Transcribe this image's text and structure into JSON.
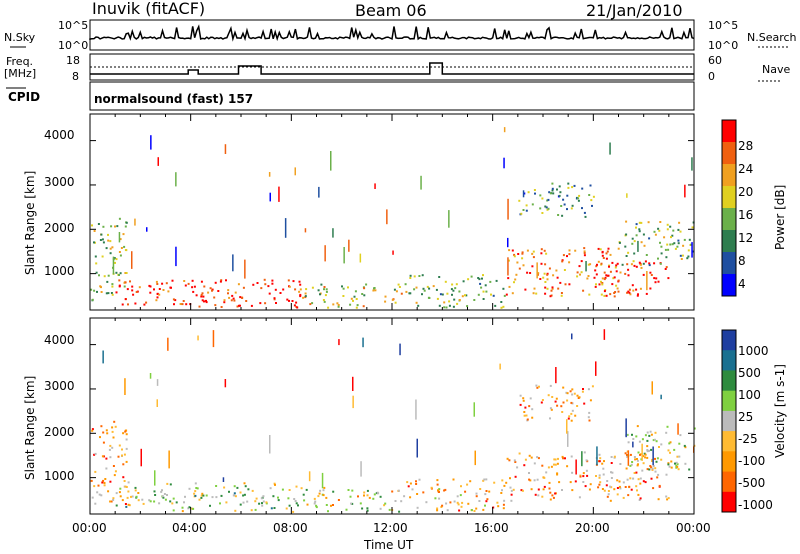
{
  "header": {
    "station": "Inuvik (fitACF)",
    "beam": "Beam 06",
    "date": "21/Jan/2010"
  },
  "noise_panel": {
    "left_label": "N.Sky",
    "left_ticks": [
      "10^5",
      "10^0"
    ],
    "right_ticks": [
      "10^5",
      "10^0"
    ],
    "right_label": "N.Search"
  },
  "freq_panel": {
    "left_label_1": "Freq.",
    "left_label_2": "[MHz]",
    "left_ticks": [
      "18",
      "8"
    ],
    "right_ticks": [
      "60",
      "0"
    ],
    "right_label": "Nave",
    "cpid_label": "CPID",
    "cpid_text": "normalsound (fast) 157"
  },
  "colors": {
    "power_scale": [
      "#0000ff",
      "#1f4fa0",
      "#2e7d4f",
      "#6bb04a",
      "#e0d020",
      "#f0a020",
      "#f06010",
      "#ff0000"
    ],
    "velocity_scale": [
      "#ff0000",
      "#ff6600",
      "#ff9900",
      "#ffbb33",
      "#bbbbbb",
      "#7fd040",
      "#2e8b3e",
      "#1a7090",
      "#1f3fa0"
    ]
  },
  "chart_data": [
    {
      "type": "heatmap",
      "title": "",
      "xlabel": "",
      "ylabel": "Slant Range [km]",
      "x_range_hours": [
        0,
        24
      ],
      "ylim": [
        180,
        4600
      ],
      "y_ticks": [
        1000,
        2000,
        3000,
        4000
      ],
      "x_ticks": [
        "00:00",
        "04:00",
        "08:00",
        "12:00",
        "16:00",
        "20:00",
        "00:00"
      ],
      "colorbar": {
        "label": "Power [dB]",
        "ticks": [
          "28",
          "24",
          "20",
          "16",
          "12",
          "8",
          "4"
        ]
      },
      "regions": [
        {
          "t0": 0,
          "t1": 1.5,
          "r0": 400,
          "r1": 2300,
          "level": 0.5
        },
        {
          "t0": 1.0,
          "t1": 5.0,
          "r0": 300,
          "r1": 900,
          "level": 0.95
        },
        {
          "t0": 4.0,
          "t1": 8.5,
          "r0": 250,
          "r1": 900,
          "level": 0.9
        },
        {
          "t0": 8.5,
          "t1": 12.5,
          "r0": 250,
          "r1": 800,
          "level": 0.55
        },
        {
          "t0": 12.5,
          "t1": 16.5,
          "r0": 250,
          "r1": 1000,
          "level": 0.45
        },
        {
          "t0": 16.5,
          "t1": 21,
          "r0": 500,
          "r1": 1600,
          "level": 0.75
        },
        {
          "t0": 20,
          "t1": 23,
          "r0": 500,
          "r1": 1300,
          "level": 0.95
        },
        {
          "t0": 17,
          "t1": 20,
          "r0": 2300,
          "r1": 3100,
          "level": 0.35
        },
        {
          "t0": 21,
          "t1": 24,
          "r0": 1200,
          "r1": 2200,
          "level": 0.45
        }
      ]
    },
    {
      "type": "heatmap",
      "title": "",
      "xlabel": "Time UT",
      "ylabel": "Slant Range [km]",
      "x_range_hours": [
        0,
        24
      ],
      "ylim": [
        180,
        4600
      ],
      "y_ticks": [
        1000,
        2000,
        3000,
        4000
      ],
      "x_ticks": [
        "00:00",
        "04:00",
        "08:00",
        "12:00",
        "16:00",
        "20:00",
        "00:00"
      ],
      "colorbar": {
        "label": "Velocity [m s-1]",
        "ticks": [
          "1000",
          "500",
          "100",
          "25",
          "-25",
          "-100",
          "-500",
          "-1000"
        ]
      },
      "regions": [
        {
          "t0": 0,
          "t1": 1.5,
          "r0": 400,
          "r1": 2300,
          "level": 0.3
        },
        {
          "t0": 1.0,
          "t1": 8.5,
          "r0": 250,
          "r1": 900,
          "level": 0.55
        },
        {
          "t0": 8.5,
          "t1": 12.5,
          "r0": 250,
          "r1": 800,
          "level": 0.45
        },
        {
          "t0": 12.5,
          "t1": 16.5,
          "r0": 250,
          "r1": 1000,
          "level": 0.35
        },
        {
          "t0": 16.5,
          "t1": 23,
          "r0": 500,
          "r1": 1600,
          "level": 0.3
        },
        {
          "t0": 17,
          "t1": 20,
          "r0": 2300,
          "r1": 3100,
          "level": 0.3
        },
        {
          "t0": 21,
          "t1": 24,
          "r0": 1200,
          "r1": 2200,
          "level": 0.5
        }
      ]
    }
  ]
}
